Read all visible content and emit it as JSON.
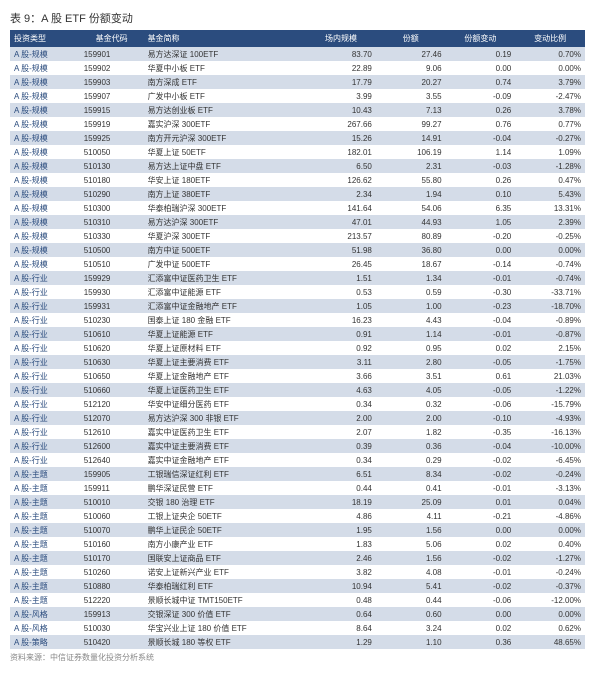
{
  "title": "表 9：A 股 ETF 份额变动",
  "columns": [
    "投资类型",
    "基金代码",
    "基金简称",
    "场内规模",
    "份额",
    "份额变动",
    "变动比例"
  ],
  "rows": [
    [
      "A 股-规模",
      "159901",
      "易方达深证 100ETF",
      "83.70",
      "27.46",
      "0.19",
      "0.70%"
    ],
    [
      "A 股-规模",
      "159902",
      "华夏中小板 ETF",
      "22.89",
      "9.06",
      "0.00",
      "0.00%"
    ],
    [
      "A 股-规模",
      "159903",
      "南方深成 ETF",
      "17.79",
      "20.27",
      "0.74",
      "3.79%"
    ],
    [
      "A 股-规模",
      "159907",
      "广发中小板 ETF",
      "3.99",
      "3.55",
      "-0.09",
      "-2.47%"
    ],
    [
      "A 股-规模",
      "159915",
      "易方达创业板 ETF",
      "10.43",
      "7.13",
      "0.26",
      "3.78%"
    ],
    [
      "A 股-规模",
      "159919",
      "嘉实沪深 300ETF",
      "267.66",
      "99.27",
      "0.76",
      "0.77%"
    ],
    [
      "A 股-规模",
      "159925",
      "南方开元沪深 300ETF",
      "15.26",
      "14.91",
      "-0.04",
      "-0.27%"
    ],
    [
      "A 股-规模",
      "510050",
      "华夏上证 50ETF",
      "182.01",
      "106.19",
      "1.14",
      "1.09%"
    ],
    [
      "A 股-规模",
      "510130",
      "易方达上证中盘 ETF",
      "6.50",
      "2.31",
      "-0.03",
      "-1.28%"
    ],
    [
      "A 股-规模",
      "510180",
      "华安上证 180ETF",
      "126.62",
      "55.80",
      "0.26",
      "0.47%"
    ],
    [
      "A 股-规模",
      "510290",
      "南方上证 380ETF",
      "2.34",
      "1.94",
      "0.10",
      "5.43%"
    ],
    [
      "A 股-规模",
      "510300",
      "华泰柏瑞沪深 300ETF",
      "141.64",
      "54.06",
      "6.35",
      "13.31%"
    ],
    [
      "A 股-规模",
      "510310",
      "易方达沪深 300ETF",
      "47.01",
      "44.93",
      "1.05",
      "2.39%"
    ],
    [
      "A 股-规模",
      "510330",
      "华夏沪深 300ETF",
      "213.57",
      "80.89",
      "-0.20",
      "-0.25%"
    ],
    [
      "A 股-规模",
      "510500",
      "南方中证 500ETF",
      "51.98",
      "36.80",
      "0.00",
      "0.00%"
    ],
    [
      "A 股-规模",
      "510510",
      "广发中证 500ETF",
      "26.45",
      "18.67",
      "-0.14",
      "-0.74%"
    ],
    [
      "A 股-行业",
      "159929",
      "汇添富中证医药卫生 ETF",
      "1.51",
      "1.34",
      "-0.01",
      "-0.74%"
    ],
    [
      "A 股-行业",
      "159930",
      "汇添富中证能源 ETF",
      "0.53",
      "0.59",
      "-0.30",
      "-33.71%"
    ],
    [
      "A 股-行业",
      "159931",
      "汇添富中证金融地产 ETF",
      "1.05",
      "1.00",
      "-0.23",
      "-18.70%"
    ],
    [
      "A 股-行业",
      "510230",
      "国泰上证 180 金融 ETF",
      "16.23",
      "4.43",
      "-0.04",
      "-0.89%"
    ],
    [
      "A 股-行业",
      "510610",
      "华夏上证能源 ETF",
      "0.91",
      "1.14",
      "-0.01",
      "-0.87%"
    ],
    [
      "A 股-行业",
      "510620",
      "华夏上证原材料 ETF",
      "0.92",
      "0.95",
      "0.02",
      "2.15%"
    ],
    [
      "A 股-行业",
      "510630",
      "华夏上证主要消费 ETF",
      "3.11",
      "2.80",
      "-0.05",
      "-1.75%"
    ],
    [
      "A 股-行业",
      "510650",
      "华夏上证金融地产 ETF",
      "3.66",
      "3.51",
      "0.61",
      "21.03%"
    ],
    [
      "A 股-行业",
      "510660",
      "华夏上证医药卫生 ETF",
      "4.63",
      "4.05",
      "-0.05",
      "-1.22%"
    ],
    [
      "A 股-行业",
      "512120",
      "华安中证细分医药 ETF",
      "0.34",
      "0.32",
      "-0.06",
      "-15.79%"
    ],
    [
      "A 股-行业",
      "512070",
      "易方达沪深 300 非银 ETF",
      "2.00",
      "2.00",
      "-0.10",
      "-4.93%"
    ],
    [
      "A 股-行业",
      "512610",
      "嘉实中证医药卫生 ETF",
      "2.07",
      "1.82",
      "-0.35",
      "-16.13%"
    ],
    [
      "A 股-行业",
      "512600",
      "嘉实中证主要消费 ETF",
      "0.39",
      "0.36",
      "-0.04",
      "-10.00%"
    ],
    [
      "A 股-行业",
      "512640",
      "嘉实中证金融地产 ETF",
      "0.34",
      "0.29",
      "-0.02",
      "-6.45%"
    ],
    [
      "A 股-主题",
      "159905",
      "工银瑞信深证红利 ETF",
      "6.51",
      "8.34",
      "-0.02",
      "-0.24%"
    ],
    [
      "A 股-主题",
      "159911",
      "鹏华深证民营 ETF",
      "0.44",
      "0.41",
      "-0.01",
      "-3.13%"
    ],
    [
      "A 股-主题",
      "510010",
      "交银 180 治理 ETF",
      "18.19",
      "25.09",
      "0.01",
      "0.04%"
    ],
    [
      "A 股-主题",
      "510060",
      "工银上证央企 50ETF",
      "4.86",
      "4.11",
      "-0.21",
      "-4.86%"
    ],
    [
      "A 股-主题",
      "510070",
      "鹏华上证民企 50ETF",
      "1.95",
      "1.56",
      "0.00",
      "0.00%"
    ],
    [
      "A 股-主题",
      "510160",
      "南方小康产业 ETF",
      "1.83",
      "5.06",
      "0.02",
      "0.40%"
    ],
    [
      "A 股-主题",
      "510170",
      "国联安上证商品 ETF",
      "2.46",
      "1.56",
      "-0.02",
      "-1.27%"
    ],
    [
      "A 股-主题",
      "510260",
      "诺安上证新兴产业 ETF",
      "3.82",
      "4.08",
      "-0.01",
      "-0.24%"
    ],
    [
      "A 股-主题",
      "510880",
      "华泰柏瑞红利 ETF",
      "10.94",
      "5.41",
      "-0.02",
      "-0.37%"
    ],
    [
      "A 股-主题",
      "512220",
      "景顺长城中证 TMT150ETF",
      "0.48",
      "0.44",
      "-0.06",
      "-12.00%"
    ],
    [
      "A 股-风格",
      "159913",
      "交银深证 300 价值 ETF",
      "0.64",
      "0.60",
      "0.00",
      "0.00%"
    ],
    [
      "A 股-风格",
      "510030",
      "华宝兴业上证 180 价值 ETF",
      "8.64",
      "3.24",
      "0.02",
      "0.62%"
    ],
    [
      "A 股-策略",
      "510420",
      "景顺长城 180 等权 ETF",
      "1.29",
      "1.10",
      "0.36",
      "48.65%"
    ]
  ],
  "source": "资料来源：中信证券数量化投资分析系统",
  "colors": {
    "header_bg": "#2b4c7e",
    "even_bg": "#d4dce8",
    "cat_color": "#2b4c7e"
  }
}
